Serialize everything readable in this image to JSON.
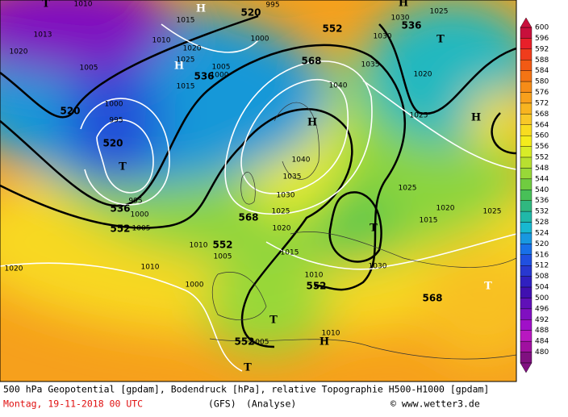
{
  "map": {
    "labels": [
      "552",
      "568",
      "536",
      "520",
      "520",
      "536",
      "552",
      "568",
      "552",
      "552",
      "552",
      "568",
      "536",
      "520",
      "T",
      "T",
      "T",
      "T",
      "T",
      "T",
      "T",
      "H",
      "H",
      "H",
      "H",
      "H",
      "H",
      "1040",
      "1035",
      "1030",
      "1025",
      "1020",
      "1015",
      "1010",
      "1005",
      "1000",
      "995",
      "1005",
      "1013",
      "1020",
      "1020",
      "1010",
      "1000",
      "1015",
      "1020",
      "1025",
      "1030",
      "1035",
      "1040",
      "1010",
      "1030",
      "1010",
      "1005",
      "1025",
      "1020",
      "1025",
      "1015",
      "1025",
      "1020",
      "1010",
      "1015",
      "1010",
      "995",
      "1000",
      "1005",
      "1000",
      "1000",
      "1005",
      "995",
      "1025",
      "1030"
    ]
  },
  "colorbar": {
    "levels": [
      600,
      596,
      592,
      588,
      584,
      580,
      576,
      572,
      568,
      564,
      560,
      556,
      552,
      548,
      544,
      540,
      536,
      532,
      528,
      524,
      520,
      516,
      512,
      508,
      504,
      500,
      496,
      492,
      488,
      484,
      480
    ],
    "colors": [
      "#c8103c",
      "#e8202a",
      "#f03c1c",
      "#f25a14",
      "#f47414",
      "#f68c18",
      "#f8a01c",
      "#f8b420",
      "#f8c828",
      "#f8dc20",
      "#f4ec1c",
      "#d8ec28",
      "#b8e030",
      "#98d838",
      "#70cc40",
      "#48c058",
      "#30b880",
      "#20b8a8",
      "#18b8d0",
      "#1898e0",
      "#1870e8",
      "#2050e0",
      "#2838d0",
      "#3020c0",
      "#4010b0",
      "#6010b8",
      "#8010c0",
      "#a010c8",
      "#b818c0",
      "#a010a0",
      "#801080"
    ]
  },
  "footer": {
    "line1": "500 hPa Geopotential [gpdam], Bodendruck [hPa], relative Topographie H500-H1000 [gpdam]",
    "date": "Montag, 19-11-2018  00 UTC",
    "model": "(GFS)",
    "run": "(Analyse)",
    "credit": "© www.wetter3.de"
  }
}
